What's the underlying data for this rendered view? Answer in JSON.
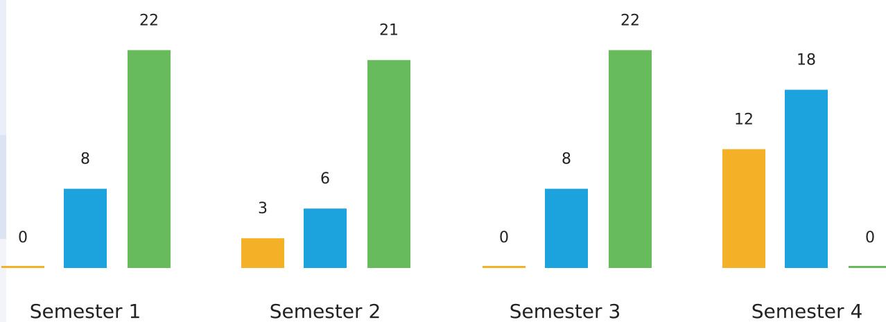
{
  "chart_data": {
    "type": "bar",
    "categories": [
      "Semester 1",
      "Semester 2",
      "Semester 3",
      "Semester 4"
    ],
    "series": [
      {
        "color": "#f4b026",
        "values": [
          0,
          3,
          0,
          12
        ]
      },
      {
        "color": "#1ca3de",
        "values": [
          8,
          6,
          8,
          18
        ]
      },
      {
        "color": "#67bb5c",
        "values": [
          22,
          21,
          22,
          0
        ]
      }
    ],
    "title": "",
    "xlabel": "",
    "ylabel": "",
    "ylim": [
      0,
      22
    ],
    "grid": false,
    "legend": "none",
    "data_labels": true
  }
}
